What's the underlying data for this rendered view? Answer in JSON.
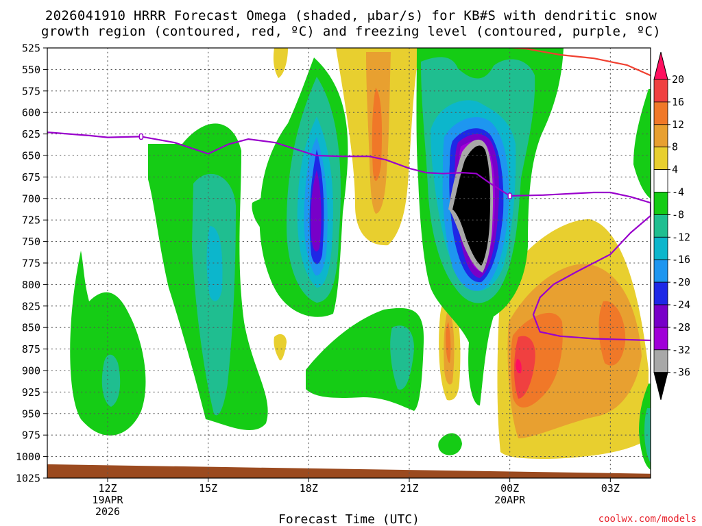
{
  "header": {
    "title_line1": "2026041910 HRRR Forecast Omega (shaded, μbar/s) for KB#S with dendritic snow",
    "title_line2": "growth region (contoured, red, ºC) and freezing level (contoured, purple, ºC)"
  },
  "footer": {
    "credit": "coolwx.com/models"
  },
  "chart_data": {
    "type": "contour",
    "xlabel": "Forecast Time (UTC)",
    "ylabel": "",
    "y_scale": "pressure (hPa), inverted",
    "ylim": [
      1025,
      525
    ],
    "y_ticks": [
      525,
      550,
      575,
      600,
      625,
      650,
      675,
      700,
      725,
      750,
      775,
      800,
      825,
      850,
      875,
      900,
      925,
      950,
      975,
      1000,
      1025
    ],
    "x_range_hours": [
      10.2,
      28.2
    ],
    "x_ticks": [
      {
        "hour": 12,
        "label": "12Z",
        "date": "19APR",
        "year": "2026"
      },
      {
        "hour": 15,
        "label": "15Z",
        "date": "",
        "year": ""
      },
      {
        "hour": 18,
        "label": "18Z",
        "date": "",
        "year": ""
      },
      {
        "hour": 21,
        "label": "21Z",
        "date": "",
        "year": ""
      },
      {
        "hour": 24,
        "label": "00Z",
        "date": "20APR",
        "year": ""
      },
      {
        "hour": 27,
        "label": "03Z",
        "date": "",
        "year": ""
      }
    ],
    "grid": true,
    "legend_placement": "right colorbar",
    "colorbar": {
      "labels": [
        "20",
        "16",
        "12",
        "8",
        "4",
        "-4",
        "-8",
        "-12",
        "-16",
        "-20",
        "-24",
        "-28",
        "-32",
        "-36"
      ],
      "colors": [
        "#ff0f5f",
        "#f04040",
        "#f07828",
        "#e8a030",
        "#e8cf2f",
        "#ffffff",
        "#15cc15",
        "#1fbe90",
        "#0cb6cc",
        "#1e96f0",
        "#1e28e6",
        "#7800c8",
        "#a000d8",
        "#a8a8a8",
        "#000000"
      ]
    },
    "series": [
      {
        "name": "freezing level",
        "color": "#9900cc",
        "points": [
          [
            10.2,
            623
          ],
          [
            11.5,
            627
          ],
          [
            12.0,
            629
          ],
          [
            13.0,
            628
          ],
          [
            14.0,
            635
          ],
          [
            15.0,
            648
          ],
          [
            15.6,
            637
          ],
          [
            16.2,
            631
          ],
          [
            17.0,
            635
          ],
          [
            17.4,
            640
          ],
          [
            18.2,
            650
          ],
          [
            19.0,
            651
          ],
          [
            19.8,
            651
          ],
          [
            20.3,
            655
          ],
          [
            21.0,
            665
          ],
          [
            21.5,
            670
          ],
          [
            22.0,
            671
          ],
          [
            22.6,
            670
          ],
          [
            23.0,
            671
          ],
          [
            23.4,
            682
          ],
          [
            24.0,
            697
          ],
          [
            25.0,
            696
          ],
          [
            26.5,
            693
          ],
          [
            27.0,
            693
          ],
          [
            27.6,
            698
          ],
          [
            28.2,
            705
          ],
          [
            28.2,
            720
          ],
          [
            27.6,
            740
          ],
          [
            27.0,
            765
          ],
          [
            26.0,
            785
          ],
          [
            25.3,
            800
          ],
          [
            24.9,
            815
          ],
          [
            24.7,
            835
          ],
          [
            24.9,
            855
          ],
          [
            25.5,
            860
          ],
          [
            26.5,
            863
          ],
          [
            28.2,
            865
          ]
        ]
      },
      {
        "name": "dendritic snow growth region",
        "color": "#f04030",
        "points": [
          [
            23.6,
            523
          ],
          [
            24.5,
            526
          ],
          [
            25.5,
            533
          ],
          [
            26.5,
            537
          ],
          [
            27.5,
            545
          ],
          [
            28.2,
            557
          ]
        ]
      }
    ],
    "omega_features": [
      {
        "name": "upward core",
        "time": 23.0,
        "pressure": 680,
        "min": -36
      },
      {
        "name": "upward core",
        "time": 18.0,
        "pressure": 670,
        "min": -28
      },
      {
        "name": "downward core",
        "time": 24.0,
        "pressure": 870,
        "max": 16
      },
      {
        "name": "downward core",
        "time": 19.8,
        "pressure": 585,
        "max": 12
      }
    ],
    "ground": {
      "color": "#9b4a1f",
      "pressure_left": 1009,
      "pressure_right": 1020
    }
  }
}
